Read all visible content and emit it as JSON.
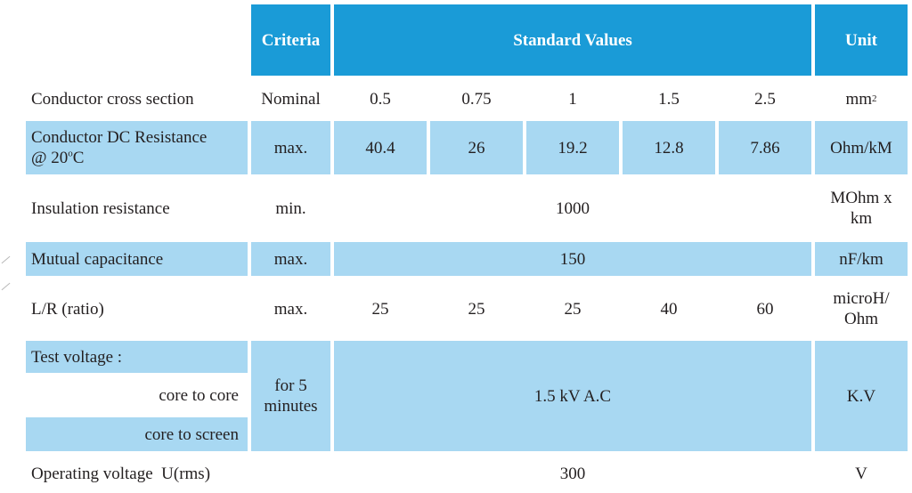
{
  "header": {
    "criteria": "Criteria",
    "standard_values": "Standard Values",
    "unit": "Unit"
  },
  "rows": {
    "cross_section": {
      "label": "Conductor cross section",
      "criteria": "Nominal",
      "values": [
        "0.5",
        "0.75",
        "1",
        "1.5",
        "2.5"
      ],
      "unit_base": "mm",
      "unit_sup": "2"
    },
    "dc_resistance": {
      "label": "Conductor DC Resistance",
      "label2_prefix": "@ 20",
      "label2_sup": "o",
      "label2_suffix": "C",
      "criteria": "max.",
      "values": [
        "40.4",
        "26",
        "19.2",
        "12.8",
        "7.86"
      ],
      "unit": "Ohm/kM"
    },
    "insulation": {
      "label": "Insulation resistance",
      "criteria": "min.",
      "value": "1000",
      "unit_line1": "MOhm x",
      "unit_line2": "km"
    },
    "capacitance": {
      "label": "Mutual capacitance",
      "criteria": "max.",
      "value": "150",
      "unit": "nF/km"
    },
    "lr_ratio": {
      "label": "L/R (ratio)",
      "criteria": "max.",
      "values": [
        "25",
        "25",
        "25",
        "40",
        "60"
      ],
      "unit_line1": "microH/",
      "unit_line2": "Ohm"
    },
    "test_voltage": {
      "label": "Test voltage :",
      "sub1": "core to core",
      "sub2": "core to screen",
      "criteria_line1": "for 5",
      "criteria_line2": "minutes",
      "value": "1.5 kV A.C",
      "unit": "K.V"
    },
    "operating": {
      "label": "Operating voltage  U(rms)",
      "value": "300",
      "unit": "V"
    }
  },
  "colors": {
    "header_blue": "#1a9bd7",
    "light_blue": "#a8d8f2",
    "text": "#231f20"
  }
}
